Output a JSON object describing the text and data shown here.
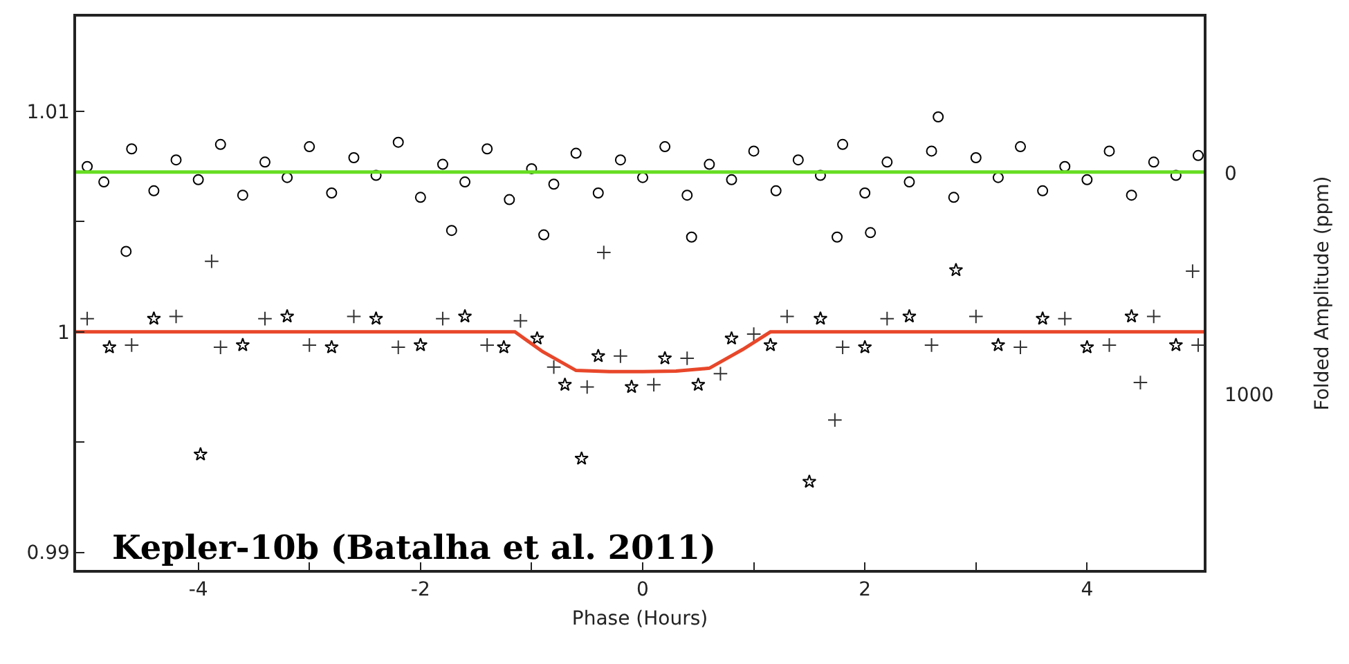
{
  "chart_data": {
    "type": "scatter",
    "xlabel": "Phase (Hours)",
    "y2label": "Folded Amplitude (ppm)",
    "annotations": [
      "Kepler-10b (Batalha et al. 2011)"
    ],
    "xlim": [
      -5.1,
      5.05
    ],
    "xticks": [
      -4,
      {
        "value": -3,
        "label": null
      },
      -2,
      {
        "value": -1,
        "label": null
      },
      0,
      {
        "value": 1,
        "label": null
      },
      2,
      {
        "value": 3,
        "label": null
      },
      4
    ],
    "ylim": [
      0.9892,
      1.0143
    ],
    "yticks": [
      0.99,
      {
        "value": 0.995,
        "label": null
      },
      1,
      {
        "value": 1.005,
        "label": null
      },
      1.01
    ],
    "y2lim": [
      1795,
      -708
    ],
    "y2ticks": [
      0,
      1000
    ],
    "series": [
      {
        "marker": "circle",
        "color": "#000000",
        "x": [
          -5.0,
          -4.85,
          -4.65,
          -4.6,
          -4.4,
          -4.2,
          -4.0,
          -3.8,
          -3.6,
          -3.4,
          -3.2,
          -3.0,
          -2.8,
          -2.6,
          -2.4,
          -2.2,
          -2.0,
          -1.8,
          -1.72,
          -1.6,
          -1.4,
          -1.2,
          -1.0,
          -0.89,
          -0.8,
          -0.6,
          -0.4,
          -0.2,
          0.0,
          0.2,
          0.4,
          0.44,
          0.6,
          0.8,
          1.0,
          1.2,
          1.4,
          1.6,
          1.75,
          1.8,
          2.0,
          2.05,
          2.2,
          2.4,
          2.6,
          2.66,
          2.8,
          3.0,
          3.2,
          3.4,
          3.6,
          3.8,
          4.0,
          4.2,
          4.4,
          4.6,
          4.8,
          5.0
        ],
        "values": [
          1.0075,
          1.0068,
          1.00365,
          1.0083,
          1.0064,
          1.0078,
          1.0069,
          1.0085,
          1.0062,
          1.0077,
          1.007,
          1.0084,
          1.0063,
          1.0079,
          1.0071,
          1.0086,
          1.0061,
          1.0076,
          1.0046,
          1.0068,
          1.0083,
          1.006,
          1.0074,
          1.0044,
          1.0067,
          1.0081,
          1.0063,
          1.0078,
          1.007,
          1.0084,
          1.0062,
          1.0043,
          1.0076,
          1.0069,
          1.0082,
          1.0064,
          1.0078,
          1.0071,
          1.0043,
          1.0085,
          1.0063,
          1.0045,
          1.0077,
          1.0068,
          1.0082,
          1.00975,
          1.0061,
          1.0079,
          1.007,
          1.0084,
          1.0064,
          1.0075,
          1.0069,
          1.0082,
          1.0062,
          1.0077,
          1.0071,
          1.008
        ]
      },
      {
        "marker": "cross",
        "color": "#333333",
        "x": [
          -5.0,
          -4.6,
          -4.2,
          -3.88,
          -3.8,
          -3.4,
          -3.0,
          -2.6,
          -2.2,
          -1.8,
          -1.4,
          -1.1,
          -0.8,
          -0.5,
          -0.35,
          -0.2,
          0.1,
          0.4,
          0.7,
          1.0,
          1.3,
          1.73,
          1.8,
          2.2,
          2.6,
          3.0,
          3.4,
          3.8,
          4.2,
          4.48,
          4.6,
          4.95,
          5.0
        ],
        "values": [
          1.0006,
          0.9994,
          1.0007,
          1.0032,
          0.9993,
          1.0006,
          0.9994,
          1.0007,
          0.9993,
          1.0006,
          0.9994,
          1.0005,
          0.9984,
          0.9975,
          1.0036,
          0.9989,
          0.9976,
          0.9988,
          0.9981,
          0.9999,
          1.0007,
          0.996,
          0.9993,
          1.0006,
          0.9994,
          1.0007,
          0.9993,
          1.0006,
          0.9994,
          0.9977,
          1.0007,
          1.00275,
          0.9994
        ]
      },
      {
        "marker": "star",
        "color": "#000000",
        "x": [
          -4.8,
          -4.4,
          -3.98,
          -3.6,
          -3.2,
          -2.8,
          -2.4,
          -2.0,
          -1.6,
          -1.25,
          -0.95,
          -0.7,
          -0.55,
          -0.4,
          -0.1,
          0.2,
          0.5,
          0.8,
          1.15,
          1.5,
          1.6,
          2.0,
          2.4,
          2.82,
          3.2,
          3.6,
          4.0,
          4.4,
          4.8
        ],
        "values": [
          0.9993,
          1.0006,
          0.99444,
          0.9994,
          1.0007,
          0.9993,
          1.0006,
          0.9994,
          1.0007,
          0.9993,
          0.9997,
          0.9976,
          0.99425,
          0.9989,
          0.9975,
          0.9988,
          0.9976,
          0.9997,
          0.9994,
          0.9932,
          1.0006,
          0.9993,
          1.0007,
          1.0028,
          0.9994,
          1.0006,
          0.9993,
          1.0007,
          0.9994
        ]
      },
      {
        "type": "line",
        "marker": "none",
        "color": "#66dd22",
        "x": [
          -5.1,
          5.05
        ],
        "values": [
          1.00725,
          1.00725
        ]
      },
      {
        "type": "line",
        "marker": "none",
        "color": "#e8472a",
        "x": [
          -5.1,
          -1.15,
          -0.9,
          -0.6,
          -0.3,
          0,
          0.3,
          0.6,
          0.9,
          1.15,
          5.05
        ],
        "values": [
          1,
          1,
          0.9991,
          0.99825,
          0.9982,
          0.9982,
          0.99822,
          0.99835,
          0.9992,
          1,
          1
        ]
      }
    ]
  }
}
